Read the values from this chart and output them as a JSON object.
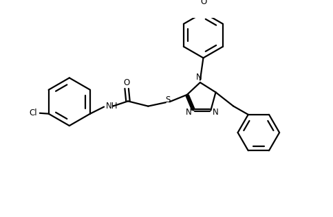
{
  "bg_color": "#ffffff",
  "line_color": "#000000",
  "line_width": 1.6,
  "figsize": [
    4.84,
    3.16
  ],
  "dpi": 100,
  "atom_labels": {
    "Cl": "Cl",
    "NH": "NH",
    "O_carbonyl": "O",
    "S": "S",
    "N1": "N",
    "N2": "N",
    "N4": "N",
    "O_methoxy": "O"
  }
}
